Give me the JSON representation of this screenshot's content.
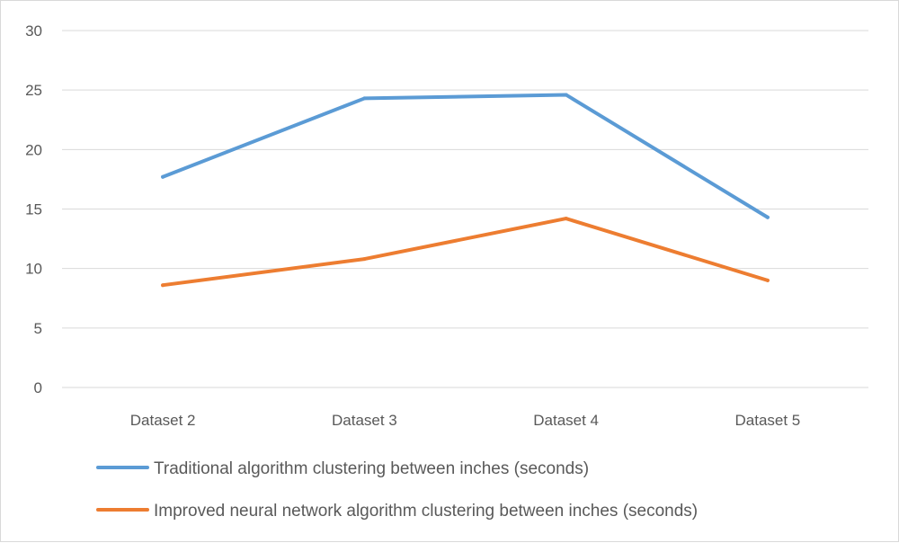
{
  "chart_data": {
    "type": "line",
    "title": "",
    "xlabel": "",
    "ylabel": "",
    "categories": [
      "Dataset 2",
      "Dataset 3",
      "Dataset 4",
      "Dataset 5"
    ],
    "ylim": [
      0,
      30
    ],
    "yticks": [
      0,
      5,
      10,
      15,
      20,
      25,
      30
    ],
    "grid": true,
    "legend_position": "bottom-left",
    "series": [
      {
        "name": "Traditional algorithm clustering between inches (seconds)",
        "color": "#5b9bd5",
        "values": [
          17.7,
          24.3,
          24.6,
          14.3
        ]
      },
      {
        "name": "Improved neural network algorithm clustering between inches (seconds)",
        "color": "#ed7d31",
        "values": [
          8.6,
          10.8,
          14.2,
          9.0
        ]
      }
    ]
  }
}
